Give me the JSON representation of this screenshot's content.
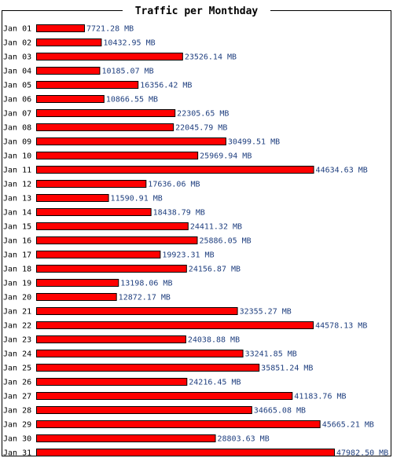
{
  "chart_data": {
    "type": "bar",
    "orientation": "horizontal",
    "title": "Traffic per Monthday",
    "unit": "MB",
    "categories": [
      "Jan 01",
      "Jan 02",
      "Jan 03",
      "Jan 04",
      "Jan 05",
      "Jan 06",
      "Jan 07",
      "Jan 08",
      "Jan 09",
      "Jan 10",
      "Jan 11",
      "Jan 12",
      "Jan 13",
      "Jan 14",
      "Jan 15",
      "Jan 16",
      "Jan 17",
      "Jan 18",
      "Jan 19",
      "Jan 20",
      "Jan 21",
      "Jan 22",
      "Jan 23",
      "Jan 24",
      "Jan 25",
      "Jan 26",
      "Jan 27",
      "Jan 28",
      "Jan 29",
      "Jan 30",
      "Jan 31"
    ],
    "values": [
      7721.28,
      10432.95,
      23526.14,
      10185.07,
      16356.42,
      10866.55,
      22305.65,
      22045.79,
      30499.51,
      25969.94,
      44634.63,
      17636.06,
      11590.91,
      18438.79,
      24411.32,
      25886.05,
      19923.31,
      24156.87,
      13198.06,
      12872.17,
      32355.27,
      44578.13,
      24038.88,
      33241.85,
      35851.24,
      24216.45,
      41183.76,
      34665.08,
      45665.21,
      28803.63,
      47982.5
    ],
    "value_labels": [
      "7721.28 MB",
      "10432.95 MB",
      "23526.14 MB",
      "10185.07 MB",
      "16356.42 MB",
      "10866.55 MB",
      "22305.65 MB",
      "22045.79 MB",
      "30499.51 MB",
      "25969.94 MB",
      "44634.63 MB",
      "17636.06 MB",
      "11590.91 MB",
      "18438.79 MB",
      "24411.32 MB",
      "25886.05 MB",
      "19923.31 MB",
      "24156.87 MB",
      "13198.06 MB",
      "12872.17 MB",
      "32355.27 MB",
      "44578.13 MB",
      "24038.88 MB",
      "33241.85 MB",
      "35851.24 MB",
      "24216.45 MB",
      "41183.76 MB",
      "34665.08 MB",
      "45665.21 MB",
      "28803.63 MB",
      "47982.50 MB"
    ],
    "xlim": [
      0,
      47982.5
    ],
    "grid": false,
    "legend": "none",
    "colors": {
      "bar_fill": "#ff0000",
      "bar_stroke": "#000000",
      "value_text": "#1f3f7f",
      "frame": "#000000",
      "background": "#ffffff"
    }
  }
}
